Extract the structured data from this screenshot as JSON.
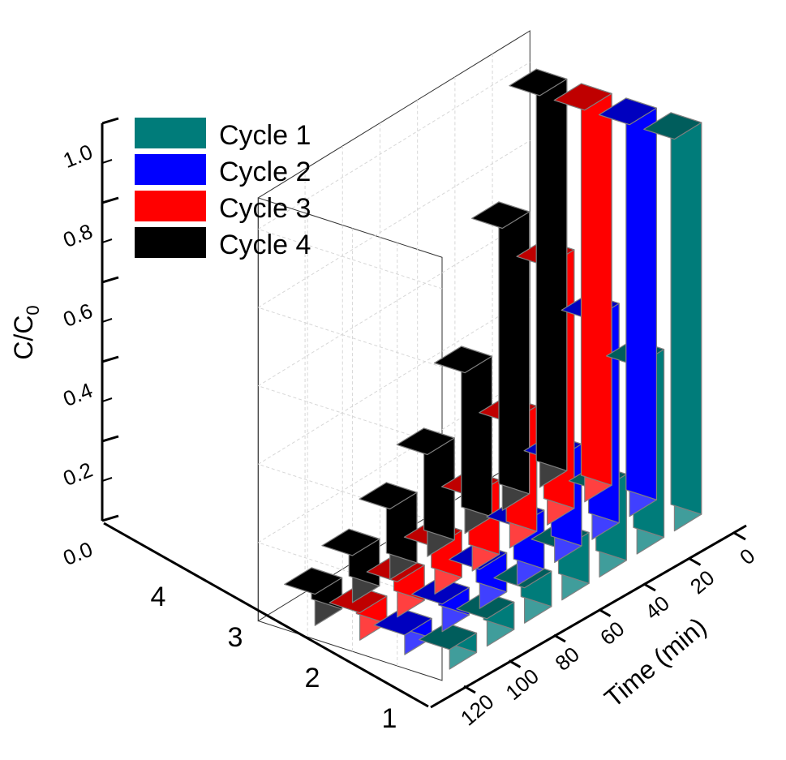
{
  "chart_data": {
    "type": "bar",
    "title": "",
    "ylabel": "C/C",
    "ylabel_subscript": "0",
    "xlabel": "Time (min)",
    "ylim": [
      0,
      1.0
    ],
    "yticks": [
      "0.0",
      "0.2",
      "0.4",
      "0.6",
      "0.8",
      "1.0"
    ],
    "x": [
      "0",
      "20",
      "40",
      "60",
      "80",
      "100",
      "120"
    ],
    "cycles": [
      "1",
      "2",
      "3",
      "4"
    ],
    "legend_position": "top-left",
    "series": [
      {
        "name": "Cycle 1",
        "color": "#007c7a",
        "values": [
          1.0,
          0.48,
          0.22,
          0.13,
          0.09,
          0.07,
          0.05
        ]
      },
      {
        "name": "Cycle 2",
        "color": "#0000ff",
        "values": [
          1.0,
          0.56,
          0.26,
          0.15,
          0.1,
          0.07,
          0.05
        ]
      },
      {
        "name": "Cycle 3",
        "color": "#ff0000",
        "values": [
          1.0,
          0.66,
          0.32,
          0.19,
          0.12,
          0.09,
          0.07
        ]
      },
      {
        "name": "Cycle 4",
        "color": "#000000",
        "values": [
          1.0,
          0.72,
          0.41,
          0.26,
          0.18,
          0.12,
          0.08
        ]
      }
    ]
  }
}
